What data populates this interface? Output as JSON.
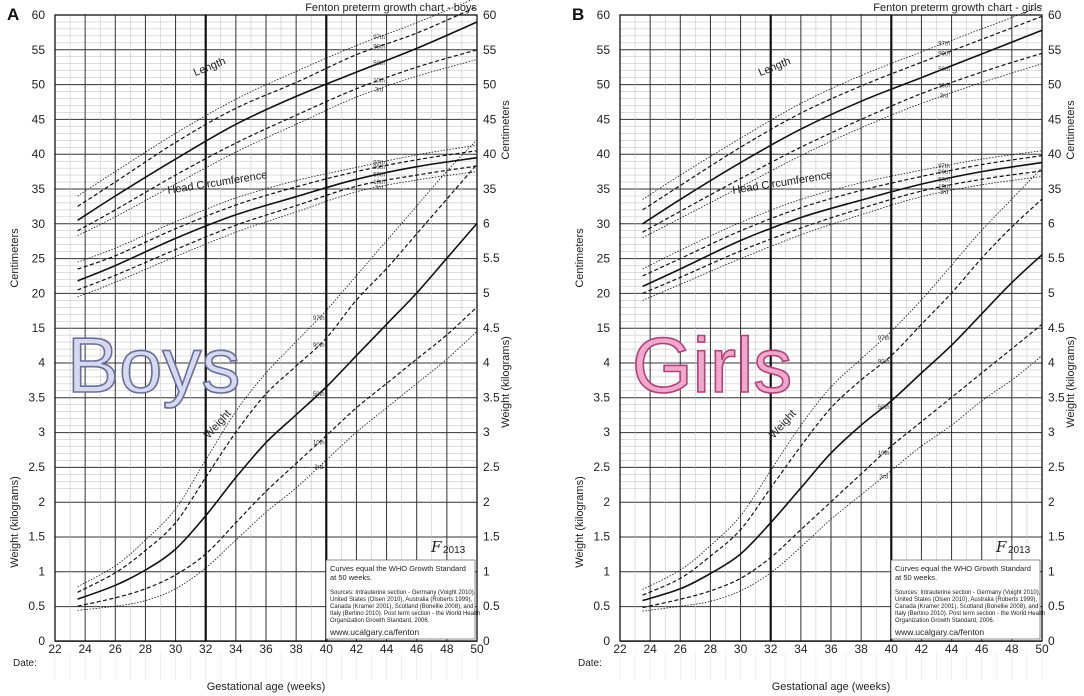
{
  "chart_data": [
    {
      "type": "line",
      "panel_letter": "A",
      "title": "Fenton preterm growth chart - boys",
      "big_label": "Boys",
      "big_label_fill": "#d6d9f0",
      "big_label_stroke": "#6b6f9a",
      "xlabel": "Gestational age (weeks)",
      "xlim": [
        22,
        50
      ],
      "x_ticks": [
        22,
        24,
        26,
        28,
        30,
        32,
        34,
        36,
        38,
        40,
        42,
        44,
        46,
        48,
        50
      ],
      "ylabel_left_top": "Centimeters",
      "ylabel_left_bottom": "Weight (kilograms)",
      "ylabel_right_top": "Centimeters",
      "ylabel_right_bottom": "Weight (kilograms)",
      "cm_ticks": [
        "60",
        "55",
        "50",
        "45",
        "40",
        "35",
        "30",
        "25",
        "20",
        "15"
      ],
      "kg_left_ticks": [
        "4",
        "3.5",
        "3",
        "2.5",
        "2",
        "1.5",
        "1",
        "0.5",
        "0"
      ],
      "cm_right_ticks": [
        "60",
        "55",
        "50",
        "45",
        "40",
        "35"
      ],
      "kg_right_ticks": [
        "6",
        "5.5",
        "5",
        "4.5",
        "4",
        "3.5",
        "3",
        "2.5",
        "2",
        "1.5",
        "1",
        "0.5",
        "0"
      ],
      "date_label": "Date:",
      "logo": "F",
      "logo_year": "2013",
      "notes": {
        "line1": "Curves equal the WHO Growth Standard",
        "line2": "at 50 weeks.",
        "sources": [
          "Sources: Intrauterine section - Germany (Voight 2010),",
          "United States (Olsen 2010), Australia (Roberts 1999),",
          "Canada (Kramer 2001), Scotland (Bonellie 2008), and",
          "Italy (Bertino 2010). Post term section - the World Health",
          "Organization Growth Standard, 2006."
        ],
        "url": "www.ucalgary.ca/fenton"
      },
      "curve_labels": {
        "length": "Length",
        "head": "Head Circumference",
        "weight": "Weight"
      },
      "percentile_labels": [
        "97th",
        "90th",
        "50th",
        "10th",
        "3rd"
      ],
      "series": [
        {
          "name": "Length",
          "group": "cm",
          "x": [
            23.5,
            26,
            30,
            34,
            38,
            42,
            46,
            50
          ],
          "p3": [
            28.3,
            31,
            35.7,
            40.3,
            44.3,
            48.2,
            51.2,
            53.6
          ],
          "p10": [
            29,
            32,
            37,
            41.6,
            45.6,
            49.4,
            52.5,
            55
          ],
          "p50": [
            30.5,
            34,
            39.3,
            44.3,
            48.3,
            51.8,
            55.2,
            59
          ],
          "p90": [
            32.5,
            36,
            41.7,
            46.6,
            50.3,
            54.3,
            57.4,
            61.2
          ],
          "p97": [
            34,
            37.5,
            43,
            47.9,
            51.9,
            55.6,
            58.9,
            62.5
          ]
        },
        {
          "name": "Head Circumference",
          "group": "cm",
          "x": [
            23.5,
            26,
            30,
            34,
            38,
            42,
            46,
            50
          ],
          "p3": [
            19.5,
            21.6,
            25.3,
            28.8,
            31.7,
            34.6,
            36.3,
            37.5
          ],
          "p10": [
            20.5,
            22.6,
            26.3,
            29.8,
            32.6,
            35.4,
            37,
            38.3
          ],
          "p50": [
            21.8,
            24,
            27.9,
            31.3,
            33.9,
            36.4,
            38.2,
            39.5
          ],
          "p90": [
            23.5,
            25.4,
            29.3,
            32.7,
            35.3,
            37.5,
            39.2,
            40.5
          ],
          "p97": [
            24.5,
            26.5,
            30.3,
            33.7,
            36.2,
            38.1,
            39.9,
            41.3
          ]
        },
        {
          "name": "Weight",
          "group": "kg",
          "x": [
            23.5,
            26,
            28,
            30,
            32,
            34,
            36,
            38,
            40,
            42,
            44,
            46,
            48,
            50
          ],
          "p3": [
            0.44,
            0.5,
            0.58,
            0.75,
            1.05,
            1.45,
            1.85,
            2.2,
            2.6,
            3,
            3.35,
            3.7,
            4.05,
            4.45
          ],
          "p10": [
            0.5,
            0.62,
            0.75,
            0.95,
            1.25,
            1.7,
            2.15,
            2.55,
            2.95,
            3.35,
            3.7,
            4.05,
            4.4,
            4.8
          ],
          "p50": [
            0.6,
            0.8,
            1.02,
            1.32,
            1.8,
            2.35,
            2.85,
            3.25,
            3.65,
            4.1,
            4.55,
            5,
            5.5,
            6
          ],
          "p90": [
            0.7,
            0.98,
            1.3,
            1.7,
            2.35,
            3,
            3.55,
            3.95,
            4.35,
            4.9,
            5.35,
            5.85,
            6.35,
            6.85
          ],
          "p97": [
            0.78,
            1.08,
            1.45,
            1.9,
            2.6,
            3.3,
            3.85,
            4.3,
            4.75,
            5.25,
            5.75,
            6.25,
            6.75,
            7.2
          ]
        }
      ]
    },
    {
      "type": "line",
      "panel_letter": "B",
      "title": "Fenton preterm growth chart - girls",
      "big_label": "Girls",
      "big_label_fill": "#f0a8cc",
      "big_label_stroke": "#b0437a",
      "xlabel": "Gestational age (weeks)",
      "xlim": [
        22,
        50
      ],
      "x_ticks": [
        22,
        24,
        26,
        28,
        30,
        32,
        34,
        36,
        38,
        40,
        42,
        44,
        46,
        48,
        50
      ],
      "ylabel_left_top": "Centimeters",
      "ylabel_left_bottom": "Weight (kilograms)",
      "ylabel_right_top": "Centimeters",
      "ylabel_right_bottom": "Weight (kilograms)",
      "cm_ticks": [
        "60",
        "55",
        "50",
        "45",
        "40",
        "35",
        "30",
        "25",
        "20",
        "15"
      ],
      "kg_left_ticks": [
        "4",
        "3.5",
        "3",
        "2.5",
        "2",
        "1.5",
        "1",
        "0.5",
        "0"
      ],
      "cm_right_ticks": [
        "60",
        "55",
        "50",
        "45",
        "40",
        "35"
      ],
      "kg_right_ticks": [
        "6",
        "5.5",
        "5",
        "4.5",
        "4",
        "3.5",
        "3",
        "2.5",
        "2",
        "1.5",
        "1",
        "0.5",
        "0"
      ],
      "date_label": "Date:",
      "logo": "F",
      "logo_year": "2013",
      "notes": {
        "line1": "Curves equal the WHO Growth Standard",
        "line2": "at 50 weeks.",
        "sources": [
          "Sources: Intrauterine section - Germany (Voight 2010),",
          "United States (Olsen 2010), Australia (Roberts 1999),",
          "Canada (Kramer 2001), Scotland (Bonellie 2008), and",
          "Italy (Bertino 2010). Post term section - the World Health",
          "Organization Growth Standard, 2006."
        ],
        "url": "www.ucalgary.ca/fenton"
      },
      "curve_labels": {
        "length": "Length",
        "head": "Head Circumference",
        "weight": "Weight"
      },
      "percentile_labels": [
        "97th",
        "90th",
        "50th",
        "10th",
        "3rd"
      ],
      "series": [
        {
          "name": "Length",
          "group": "cm",
          "x": [
            23.5,
            26,
            30,
            34,
            38,
            42,
            46,
            50
          ],
          "p3": [
            28,
            30.8,
            35.3,
            39.8,
            43.8,
            47.3,
            50.3,
            53
          ],
          "p10": [
            28.8,
            31.8,
            36.5,
            41,
            45,
            48.7,
            51.8,
            54.5
          ],
          "p50": [
            30,
            33.5,
            38.8,
            43.6,
            47.6,
            51,
            54.4,
            57.8
          ],
          "p90": [
            32,
            35.5,
            41,
            45.9,
            49.8,
            53.2,
            56.5,
            59.8
          ],
          "p97": [
            33.5,
            37,
            42.3,
            47.3,
            51.3,
            54.7,
            58,
            61.3
          ]
        },
        {
          "name": "Head Circumference",
          "group": "cm",
          "x": [
            23.5,
            26,
            30,
            34,
            38,
            42,
            46,
            50
          ],
          "p3": [
            19,
            21.3,
            25,
            28.4,
            31.3,
            33.9,
            35.6,
            36.8
          ],
          "p10": [
            20,
            22.3,
            26.1,
            29.4,
            32.2,
            34.7,
            36.4,
            37.6
          ],
          "p50": [
            21,
            23.5,
            27.6,
            30.9,
            33.4,
            35.7,
            37.5,
            38.8
          ],
          "p90": [
            22.5,
            25,
            29,
            32.3,
            34.8,
            36.8,
            38.5,
            39.8
          ],
          "p97": [
            23.5,
            26.2,
            30.2,
            33.5,
            35.9,
            37.7,
            39.3,
            40.5
          ]
        },
        {
          "name": "Weight",
          "group": "kg",
          "x": [
            23.5,
            26,
            28,
            30,
            32,
            34,
            36,
            38,
            40,
            42,
            44,
            46,
            48,
            50
          ],
          "p3": [
            0.43,
            0.5,
            0.57,
            0.72,
            0.98,
            1.35,
            1.75,
            2.1,
            2.45,
            2.8,
            3.1,
            3.45,
            3.75,
            4.1
          ],
          "p10": [
            0.48,
            0.6,
            0.72,
            0.9,
            1.2,
            1.6,
            2,
            2.4,
            2.8,
            3.15,
            3.5,
            3.85,
            4.2,
            4.55
          ],
          "p50": [
            0.58,
            0.75,
            0.97,
            1.25,
            1.7,
            2.2,
            2.7,
            3.1,
            3.45,
            3.85,
            4.25,
            4.7,
            5.15,
            5.55
          ],
          "p90": [
            0.66,
            0.9,
            1.22,
            1.6,
            2.2,
            2.8,
            3.35,
            3.75,
            4.1,
            4.55,
            5,
            5.5,
            5.95,
            6.35
          ],
          "p97": [
            0.74,
            1.02,
            1.37,
            1.8,
            2.45,
            3.1,
            3.65,
            4.05,
            4.45,
            4.9,
            5.4,
            5.9,
            6.35,
            6.8
          ]
        }
      ]
    }
  ]
}
